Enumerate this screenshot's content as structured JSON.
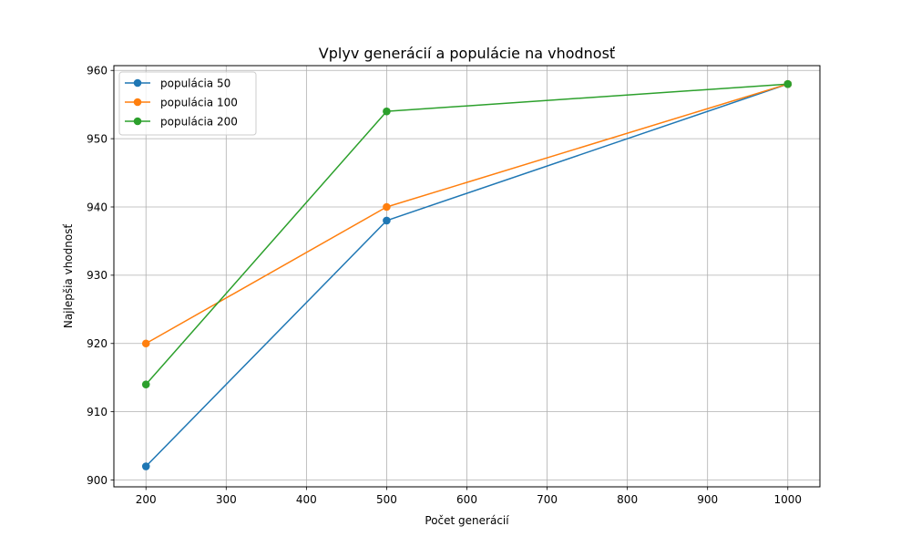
{
  "chart_data": {
    "type": "line",
    "title": "Vplyv generácií a populácie na vhodnosť",
    "xlabel": "Počet generácií",
    "ylabel": "Najlepšia vhodnosť",
    "xlim": [
      160,
      1040
    ],
    "ylim": [
      899,
      960.7
    ],
    "xticks": [
      200,
      300,
      400,
      500,
      600,
      700,
      800,
      900,
      1000
    ],
    "yticks": [
      900,
      910,
      920,
      930,
      940,
      950,
      960
    ],
    "grid": true,
    "legend_position": "top-left",
    "x": [
      200,
      500,
      1000
    ],
    "series": [
      {
        "name": "populácia 50",
        "values": [
          902,
          938,
          958
        ],
        "color": "#1f77b4",
        "marker": "circle"
      },
      {
        "name": "populácia 100",
        "values": [
          920,
          940,
          958
        ],
        "color": "#ff7f0e",
        "marker": "circle"
      },
      {
        "name": "populácia 200",
        "values": [
          914,
          954,
          958
        ],
        "color": "#2ca02c",
        "marker": "circle"
      }
    ]
  }
}
